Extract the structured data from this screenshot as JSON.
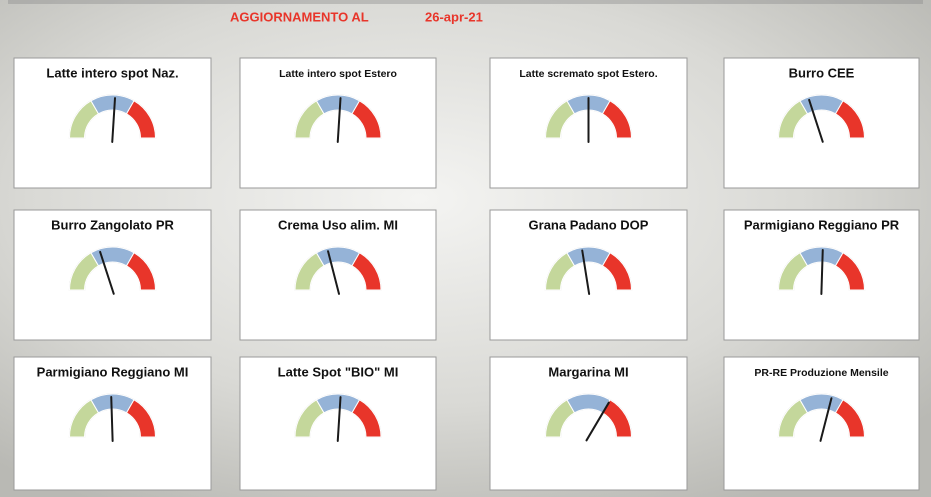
{
  "header": {
    "label": "AGGIORNAMENTO AL",
    "date": "26-apr-21"
  },
  "chart_data": [
    {
      "type": "gauge",
      "title": "Latte intero spot Naz.",
      "value": 52,
      "range": [
        0,
        100
      ],
      "bands": [
        {
          "from": 0,
          "to": 33.3,
          "color": "#c4d79b"
        },
        {
          "from": 33.3,
          "to": 66.7,
          "color": "#95b3d7"
        },
        {
          "from": 66.7,
          "to": 100,
          "color": "#e8352a"
        }
      ]
    },
    {
      "type": "gauge",
      "title": "Latte intero spot Estero",
      "value": 52,
      "range": [
        0,
        100
      ],
      "bands": [
        {
          "from": 0,
          "to": 33.3,
          "color": "#c4d79b"
        },
        {
          "from": 33.3,
          "to": 66.7,
          "color": "#95b3d7"
        },
        {
          "from": 66.7,
          "to": 100,
          "color": "#e8352a"
        }
      ]
    },
    {
      "type": "gauge",
      "title": "Latte scremato spot Estero.",
      "value": 50,
      "range": [
        0,
        100
      ],
      "bands": [
        {
          "from": 0,
          "to": 33.3,
          "color": "#c4d79b"
        },
        {
          "from": 33.3,
          "to": 66.7,
          "color": "#95b3d7"
        },
        {
          "from": 66.7,
          "to": 100,
          "color": "#e8352a"
        }
      ]
    },
    {
      "type": "gauge",
      "title": "Burro CEE",
      "value": 40,
      "range": [
        0,
        100
      ],
      "bands": [
        {
          "from": 0,
          "to": 33.3,
          "color": "#c4d79b"
        },
        {
          "from": 33.3,
          "to": 66.7,
          "color": "#95b3d7"
        },
        {
          "from": 66.7,
          "to": 100,
          "color": "#e8352a"
        }
      ]
    },
    {
      "type": "gauge",
      "title": "Burro Zangolato PR",
      "value": 40,
      "range": [
        0,
        100
      ],
      "bands": [
        {
          "from": 0,
          "to": 33.3,
          "color": "#c4d79b"
        },
        {
          "from": 33.3,
          "to": 66.7,
          "color": "#95b3d7"
        },
        {
          "from": 66.7,
          "to": 100,
          "color": "#e8352a"
        }
      ]
    },
    {
      "type": "gauge",
      "title": "Crema Uso alim. MI",
      "value": 42,
      "range": [
        0,
        100
      ],
      "bands": [
        {
          "from": 0,
          "to": 33.3,
          "color": "#c4d79b"
        },
        {
          "from": 33.3,
          "to": 66.7,
          "color": "#95b3d7"
        },
        {
          "from": 66.7,
          "to": 100,
          "color": "#e8352a"
        }
      ]
    },
    {
      "type": "gauge",
      "title": "Grana Padano DOP",
      "value": 45,
      "range": [
        0,
        100
      ],
      "bands": [
        {
          "from": 0,
          "to": 33.3,
          "color": "#c4d79b"
        },
        {
          "from": 33.3,
          "to": 66.7,
          "color": "#95b3d7"
        },
        {
          "from": 66.7,
          "to": 100,
          "color": "#e8352a"
        }
      ]
    },
    {
      "type": "gauge",
      "title": "Parmigiano Reggiano PR",
      "value": 51,
      "range": [
        0,
        100
      ],
      "bands": [
        {
          "from": 0,
          "to": 33.3,
          "color": "#c4d79b"
        },
        {
          "from": 33.3,
          "to": 66.7,
          "color": "#95b3d7"
        },
        {
          "from": 66.7,
          "to": 100,
          "color": "#e8352a"
        }
      ]
    },
    {
      "type": "gauge",
      "title": "Parmigiano Reggiano MI",
      "value": 49,
      "range": [
        0,
        100
      ],
      "bands": [
        {
          "from": 0,
          "to": 33.3,
          "color": "#c4d79b"
        },
        {
          "from": 33.3,
          "to": 66.7,
          "color": "#95b3d7"
        },
        {
          "from": 66.7,
          "to": 100,
          "color": "#e8352a"
        }
      ]
    },
    {
      "type": "gauge",
      "title": "Latte Spot \"BIO\" MI",
      "value": 52,
      "range": [
        0,
        100
      ],
      "bands": [
        {
          "from": 0,
          "to": 33.3,
          "color": "#c4d79b"
        },
        {
          "from": 33.3,
          "to": 66.7,
          "color": "#95b3d7"
        },
        {
          "from": 66.7,
          "to": 100,
          "color": "#e8352a"
        }
      ]
    },
    {
      "type": "gauge",
      "title": "Margarina MI",
      "value": 67,
      "range": [
        0,
        100
      ],
      "bands": [
        {
          "from": 0,
          "to": 33.3,
          "color": "#c4d79b"
        },
        {
          "from": 33.3,
          "to": 66.7,
          "color": "#95b3d7"
        },
        {
          "from": 66.7,
          "to": 100,
          "color": "#e8352a"
        }
      ]
    },
    {
      "type": "gauge",
      "title": "PR-RE Produzione Mensile",
      "value": 58,
      "range": [
        0,
        100
      ],
      "bands": [
        {
          "from": 0,
          "to": 33.3,
          "color": "#c4d79b"
        },
        {
          "from": 33.3,
          "to": 66.7,
          "color": "#95b3d7"
        },
        {
          "from": 66.7,
          "to": 100,
          "color": "#e8352a"
        }
      ]
    }
  ]
}
